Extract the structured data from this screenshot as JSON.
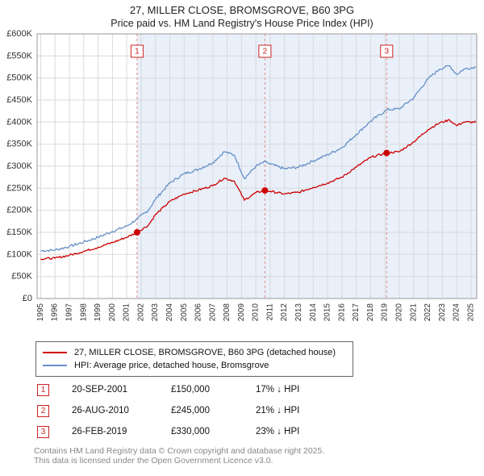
{
  "title": "27, MILLER CLOSE, BROMSGROVE, B60 3PG",
  "subtitle": "Price paid vs. HM Land Registry's House Price Index (HPI)",
  "chart_data": {
    "type": "line",
    "title": "27, MILLER CLOSE, BROMSGROVE, B60 3PG Price paid vs. HPI",
    "xlim": [
      1994.75,
      2025.4
    ],
    "ylim": [
      0,
      600000
    ],
    "x_years": [
      1995,
      1996,
      1997,
      1998,
      1999,
      2000,
      2001,
      2002,
      2003,
      2004,
      2005,
      2006,
      2007,
      2008,
      2009,
      2010,
      2011,
      2012,
      2013,
      2014,
      2015,
      2016,
      2017,
      2018,
      2019,
      2020,
      2021,
      2022,
      2023,
      2024,
      2025
    ],
    "yticks": [
      0,
      50000,
      100000,
      150000,
      200000,
      250000,
      300000,
      350000,
      400000,
      450000,
      500000,
      550000,
      600000
    ],
    "ytick_labels": [
      "£0",
      "£50K",
      "£100K",
      "£150K",
      "£200K",
      "£250K",
      "£300K",
      "£350K",
      "£400K",
      "£450K",
      "£500K",
      "£550K",
      "£600K"
    ],
    "grid": true,
    "legend_position": "bottom",
    "shade_from_x": 2001.72,
    "shade_color": "#e9f0fa",
    "dashed_line_color": "#e08a8a",
    "series": [
      {
        "name": "HPI: Average price, detached house, Bromsgrove",
        "color": "#6590c6",
        "noise": 2800,
        "anchors_x": [
          1995,
          1996,
          1997,
          1998,
          1999,
          2000,
          2001,
          2001.75,
          2002.5,
          2003,
          2004,
          2005,
          2006,
          2007,
          2007.8,
          2008.5,
          2009.2,
          2010,
          2010.65,
          2011,
          2012,
          2013,
          2014,
          2015,
          2016,
          2017,
          2018,
          2019.15,
          2020,
          2021,
          2022,
          2022.8,
          2023.5,
          2024,
          2024.5,
          2025.35
        ],
        "anchors_y": [
          108000,
          110000,
          118000,
          128000,
          139000,
          152000,
          164000,
          181000,
          200000,
          225000,
          262000,
          283000,
          293000,
          308000,
          333000,
          325000,
          272000,
          300000,
          310000,
          305000,
          294000,
          298000,
          312000,
          326000,
          342000,
          372000,
          402000,
          428000,
          430000,
          455000,
          498000,
          520000,
          528000,
          508000,
          520000,
          525000
        ]
      },
      {
        "name": "27, MILLER CLOSE, BROMSGROVE, B60 3PG (detached house)",
        "color": "#cc0000",
        "noise": 2200,
        "anchors_x": [
          1995,
          1996,
          1997,
          1998,
          1999,
          2000,
          2001,
          2001.72,
          2002.5,
          2003,
          2004,
          2005,
          2006,
          2007,
          2007.8,
          2008.5,
          2009.2,
          2010,
          2010.63,
          2011,
          2012,
          2013,
          2014,
          2015,
          2016,
          2017,
          2018,
          2019.12,
          2020,
          2021,
          2022,
          2022.8,
          2023.5,
          2024,
          2024.5,
          2025.35
        ],
        "anchors_y": [
          90000,
          91500,
          98000,
          107000,
          116000,
          127000,
          139000,
          150000,
          166000,
          190000,
          220000,
          237000,
          246000,
          256000,
          273000,
          266000,
          223000,
          240000,
          245000,
          243000,
          237000,
          241000,
          252000,
          262000,
          275000,
          298000,
          320000,
          330000,
          333000,
          355000,
          383000,
          398000,
          405000,
          392000,
          400000,
          400000
        ]
      }
    ],
    "sales": [
      {
        "label": "1",
        "x": 2001.72,
        "y": 150000
      },
      {
        "label": "2",
        "x": 2010.63,
        "y": 245000
      },
      {
        "label": "3",
        "x": 2019.12,
        "y": 330000
      }
    ]
  },
  "legend": {
    "row1": "27, MILLER CLOSE, BROMSGROVE, B60 3PG (detached house)",
    "row2": "HPI: Average price, detached house, Bromsgrove"
  },
  "transactions": [
    {
      "num": "1",
      "date": "20-SEP-2001",
      "price": "£150,000",
      "hpi": "17% ↓ HPI"
    },
    {
      "num": "2",
      "date": "26-AUG-2010",
      "price": "£245,000",
      "hpi": "21% ↓ HPI"
    },
    {
      "num": "3",
      "date": "26-FEB-2019",
      "price": "£330,000",
      "hpi": "23% ↓ HPI"
    }
  ],
  "footer": {
    "line1": "Contains HM Land Registry data © Crown copyright and database right 2025.",
    "line2": "This data is licensed under the Open Government Licence v3.0."
  }
}
